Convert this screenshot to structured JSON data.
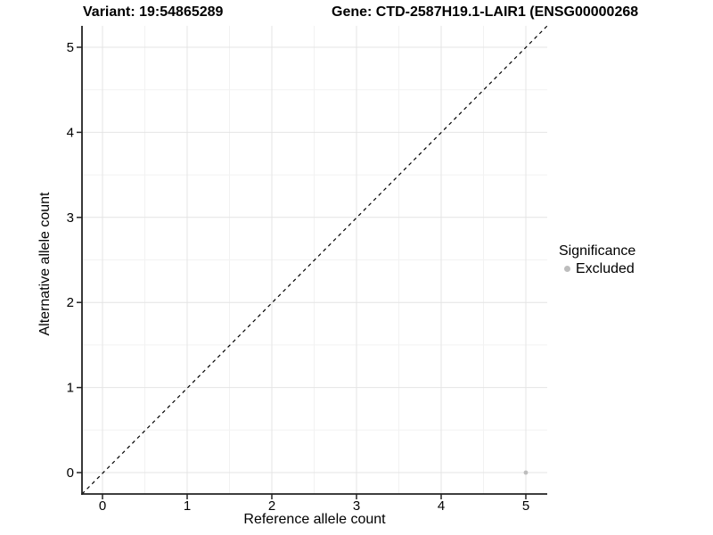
{
  "chart_data": {
    "type": "scatter",
    "title_left": "Variant: 19:54865289",
    "title_right": "Gene: CTD-2587H19.1-LAIR1 (ENSG00000268",
    "xlabel": "Reference allele count",
    "ylabel": "Alternative allele count",
    "xlim": [
      -0.25,
      5.25
    ],
    "ylim": [
      -0.25,
      5.25
    ],
    "xticks": [
      0,
      1,
      2,
      3,
      4,
      5
    ],
    "yticks": [
      0,
      1,
      2,
      3,
      4,
      5
    ],
    "grid": "major and minor, minor at 0.5 steps",
    "identity_line": {
      "style": "dashed",
      "slope": 1,
      "intercept": 0,
      "color": "#000000"
    },
    "points": [
      {
        "x": 5,
        "y": 0,
        "significance": "Excluded",
        "color": "#bdbdbd"
      }
    ],
    "legend": {
      "title": "Significance",
      "position": "right",
      "entries": [
        {
          "label": "Excluded",
          "color": "#bdbdbd",
          "marker": "circle"
        }
      ]
    },
    "colors": {
      "background": "#ffffff",
      "grid_major": "#e4e4e4",
      "grid_minor": "#f2f2f2",
      "axis_line": "#222222",
      "tick": "#222222",
      "text": "#000000",
      "point": "#bdbdbd"
    }
  }
}
